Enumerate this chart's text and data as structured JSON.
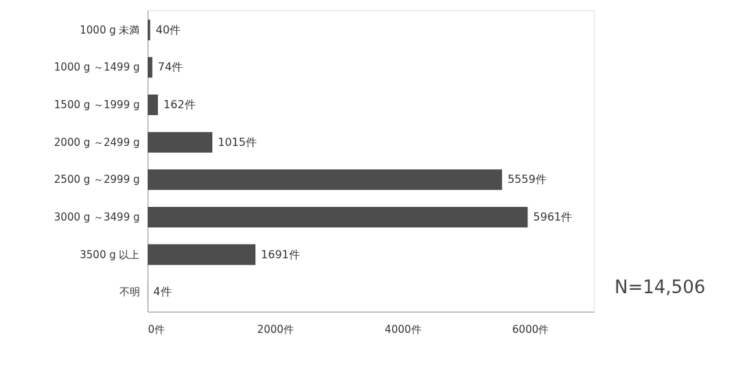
{
  "chart_data": {
    "type": "bar",
    "orientation": "horizontal",
    "categories": [
      "1000 g 未満",
      "1000 g ～1499 g",
      "1500 g ～1999 g",
      "2000 g ～2499 g",
      "2500 g ～2999 g",
      "3000 g ～3499 g",
      "3500 g 以上",
      "不明"
    ],
    "values": [
      40,
      74,
      162,
      1015,
      5559,
      5961,
      1691,
      4
    ],
    "value_labels": [
      "40件",
      "74件",
      "162件",
      "1015件",
      "5559件",
      "5961件",
      "1691件",
      "4件"
    ],
    "color": "#4d4d4d",
    "xlim": [
      0,
      7000
    ],
    "xticks": [
      {
        "value": 0,
        "label": "0件"
      },
      {
        "value": 2000,
        "label": "2000件"
      },
      {
        "value": 4000,
        "label": "4000件"
      },
      {
        "value": 6000,
        "label": "6000件"
      }
    ],
    "grid": false,
    "annotations": [
      "N=14,506"
    ]
  }
}
